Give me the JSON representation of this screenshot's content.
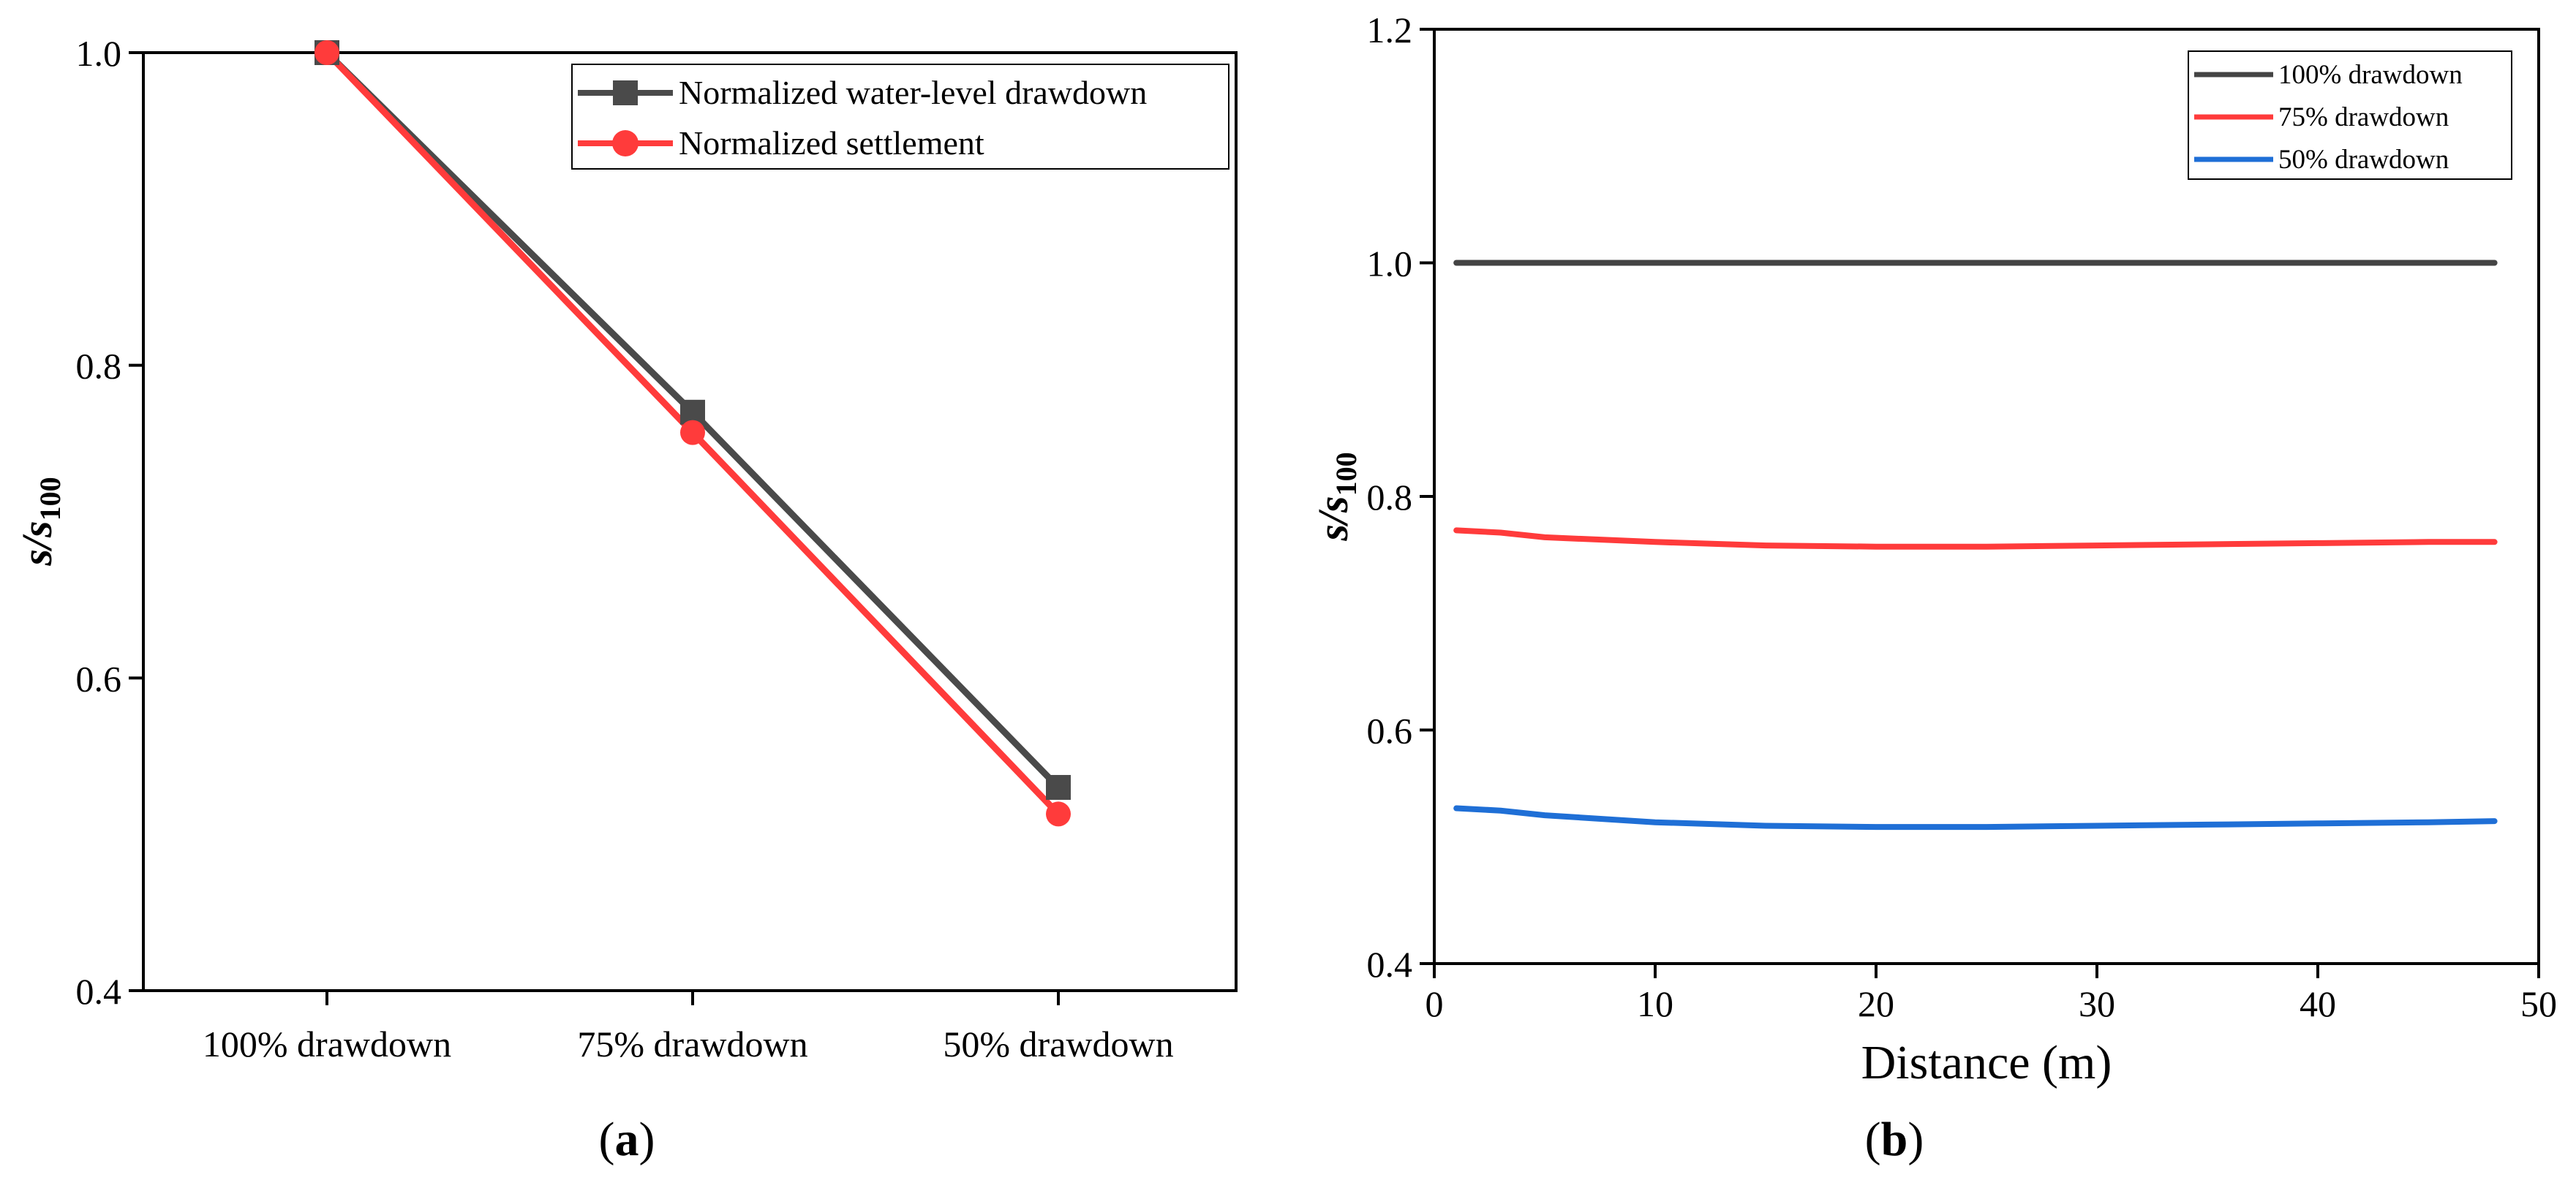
{
  "chart_data": [
    {
      "type": "line",
      "panel": "a",
      "panel_label": "a",
      "categories": [
        "100% drawdown",
        "75% drawdown",
        "50% drawdown"
      ],
      "series": [
        {
          "name": "Normalized water-level drawdown",
          "values": [
            1.0,
            0.77,
            0.53
          ],
          "color": "#4a4a4a",
          "marker": "square"
        },
        {
          "name": "Normalized settlement",
          "values": [
            1.0,
            0.757,
            0.513
          ],
          "color": "#ff3b3b",
          "marker": "circle"
        }
      ],
      "ylabel_main": "s/s",
      "ylabel_sub": "100",
      "ylim": [
        0.4,
        1.0
      ],
      "yticks": [
        "0.4",
        "0.6",
        "0.8",
        "1.0"
      ],
      "legend_position": "top-right",
      "grid": false
    },
    {
      "type": "line",
      "panel": "b",
      "panel_label": "b",
      "xlabel": "Distance (m)",
      "ylabel_main": "s/s",
      "ylabel_sub": "100",
      "xlim": [
        0,
        50
      ],
      "ylim": [
        0.4,
        1.2
      ],
      "xticks": [
        "0",
        "10",
        "20",
        "30",
        "40",
        "50"
      ],
      "yticks": [
        "0.4",
        "0.6",
        "0.8",
        "1.0",
        "1.2"
      ],
      "legend_position": "top-right",
      "grid": false,
      "series": [
        {
          "name": "100% drawdown",
          "color": "#444444",
          "x": [
            1,
            5,
            10,
            15,
            20,
            25,
            30,
            35,
            40,
            45,
            48
          ],
          "y": [
            1.0,
            1.0,
            1.0,
            1.0,
            1.0,
            1.0,
            1.0,
            1.0,
            1.0,
            1.0,
            1.0
          ]
        },
        {
          "name": "75% drawdown",
          "color": "#ff3b3b",
          "x": [
            1,
            3,
            5,
            10,
            15,
            20,
            25,
            30,
            35,
            40,
            45,
            48
          ],
          "y": [
            0.771,
            0.769,
            0.765,
            0.761,
            0.758,
            0.757,
            0.757,
            0.758,
            0.759,
            0.76,
            0.761,
            0.761
          ]
        },
        {
          "name": "50% drawdown",
          "color": "#1f6fd6",
          "x": [
            1,
            3,
            5,
            10,
            15,
            20,
            25,
            30,
            35,
            40,
            45,
            48
          ],
          "y": [
            0.533,
            0.531,
            0.527,
            0.521,
            0.518,
            0.517,
            0.517,
            0.518,
            0.519,
            0.52,
            0.521,
            0.522
          ]
        }
      ]
    }
  ]
}
